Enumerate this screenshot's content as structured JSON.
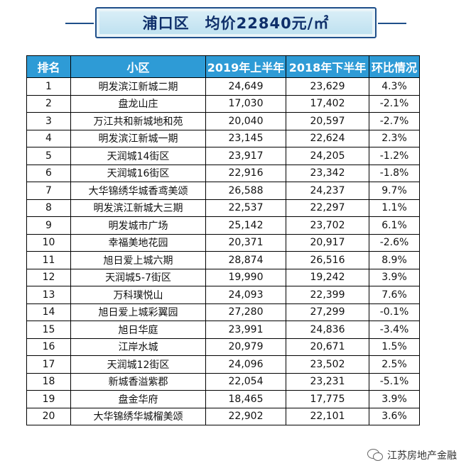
{
  "title": {
    "district": "浦口区",
    "avg_price": "均价22840元/㎡"
  },
  "table": {
    "headers": [
      "排名",
      "小区",
      "2019年上半年",
      "2018年下半年",
      "环比情况"
    ],
    "rows": [
      [
        "1",
        "明发滨江新城二期",
        "24,649",
        "23,629",
        "4.3%"
      ],
      [
        "2",
        "盘龙山庄",
        "17,030",
        "17,402",
        "-2.1%"
      ],
      [
        "3",
        "万江共和新城地和苑",
        "20,040",
        "20,597",
        "-2.7%"
      ],
      [
        "4",
        "明发滨江新城一期",
        "23,145",
        "22,624",
        "2.3%"
      ],
      [
        "5",
        "天润城14街区",
        "23,917",
        "24,205",
        "-1.2%"
      ],
      [
        "6",
        "天润城16街区",
        "22,916",
        "23,342",
        "-1.8%"
      ],
      [
        "7",
        "大华锦绣华城香鸢美颂",
        "26,588",
        "24,237",
        "9.7%"
      ],
      [
        "8",
        "明发滨江新城大三期",
        "22,537",
        "22,297",
        "1.1%"
      ],
      [
        "9",
        "明发城市广场",
        "25,142",
        "23,702",
        "6.1%"
      ],
      [
        "10",
        "幸福美地花园",
        "20,371",
        "20,917",
        "-2.6%"
      ],
      [
        "11",
        "旭日爱上城六期",
        "28,874",
        "26,516",
        "8.9%"
      ],
      [
        "12",
        "天润城5-7街区",
        "19,990",
        "19,242",
        "3.9%"
      ],
      [
        "13",
        "万科璞悦山",
        "24,093",
        "22,399",
        "7.6%"
      ],
      [
        "14",
        "旭日爱上城彩翼园",
        "27,280",
        "27,299",
        "-0.1%"
      ],
      [
        "15",
        "旭日华庭",
        "23,991",
        "24,836",
        "-3.4%"
      ],
      [
        "16",
        "江岸水城",
        "20,979",
        "20,671",
        "1.5%"
      ],
      [
        "17",
        "天润城12街区",
        "24,096",
        "23,502",
        "2.5%"
      ],
      [
        "18",
        "新城香溢紫郡",
        "22,054",
        "23,231",
        "-5.1%"
      ],
      [
        "19",
        "盘金华府",
        "18,465",
        "17,775",
        "3.9%"
      ],
      [
        "20",
        "大华锦绣华城榴美颂",
        "22,902",
        "22,101",
        "3.6%"
      ]
    ]
  },
  "footer": {
    "account_name": "江苏房地产金融",
    "icon": "wechat-icon"
  },
  "colors": {
    "header_bg": "#2e9bd6",
    "highlight_text": "#d9262c",
    "title_text": "#0f2f6a"
  }
}
